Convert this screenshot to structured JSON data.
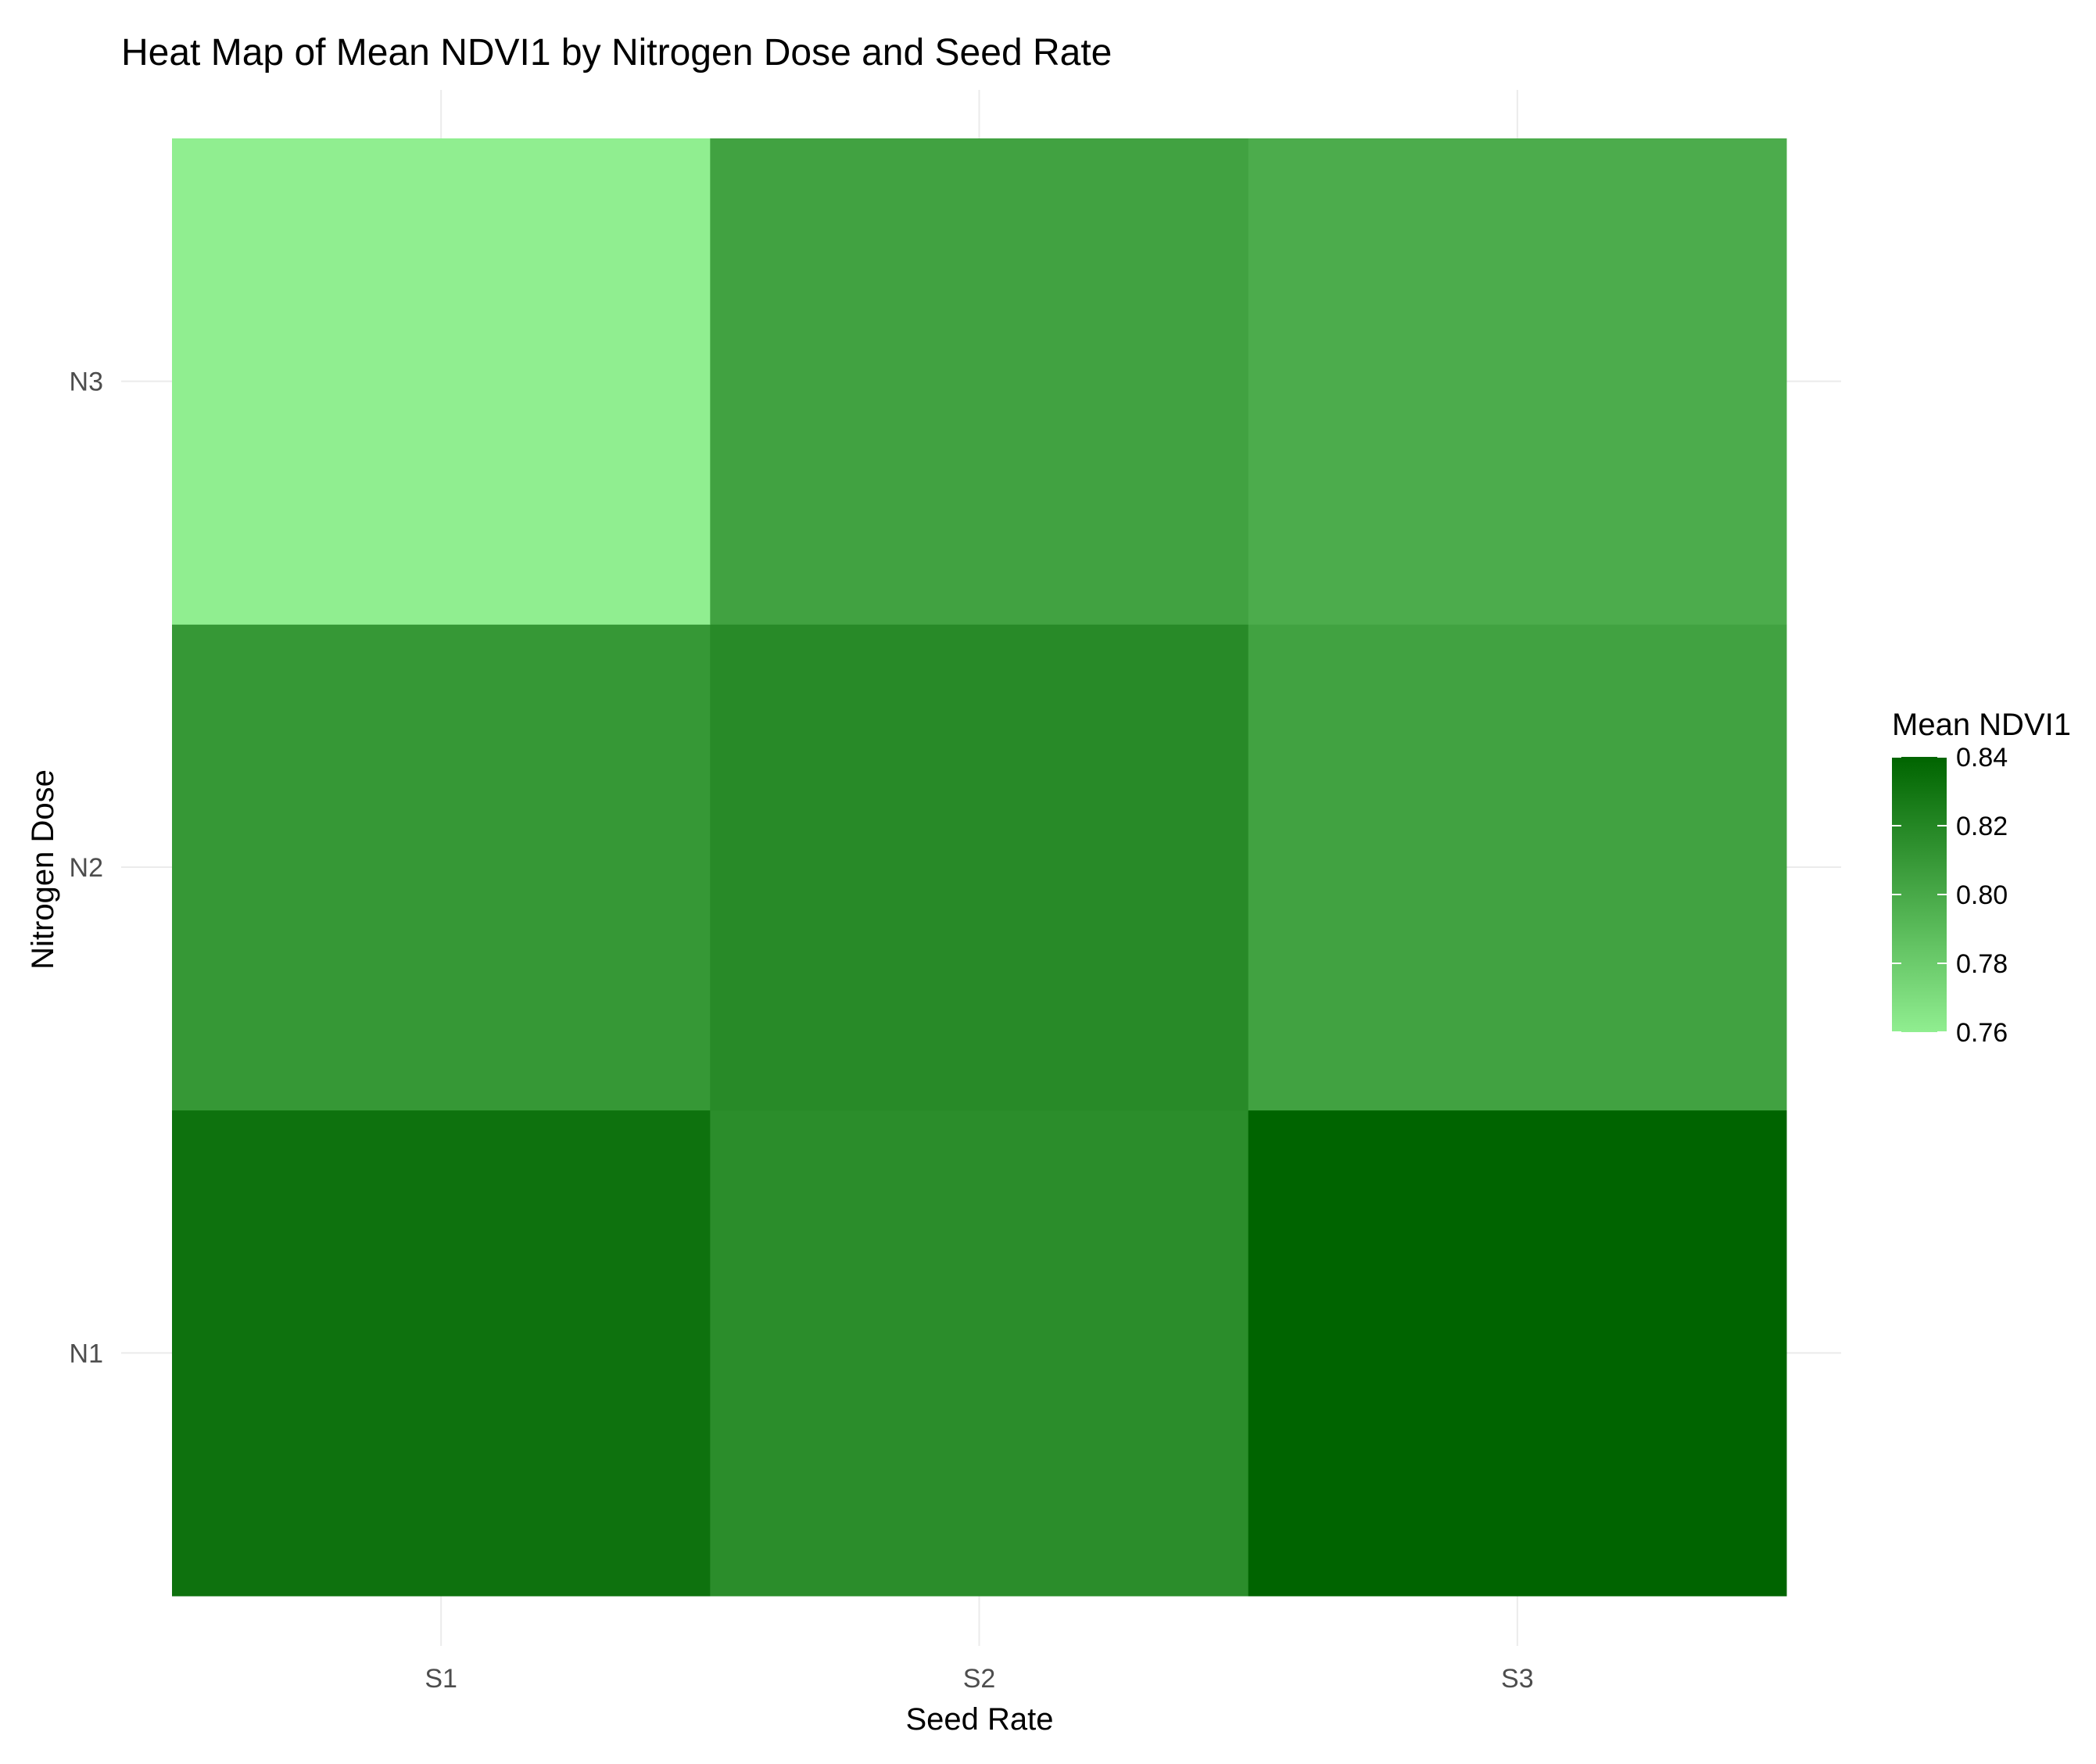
{
  "chart_data": {
    "type": "heatmap",
    "title": "Heat Map of Mean NDVI1 by Nitrogen Dose and Seed Rate",
    "xlabel": "Seed Rate",
    "ylabel": "Nitrogen Dose",
    "x_categories": [
      "S1",
      "S2",
      "S3"
    ],
    "y_categories": [
      "N1",
      "N2",
      "N3"
    ],
    "cells": [
      {
        "x": "S1",
        "y": "N1",
        "value": 0.832
      },
      {
        "x": "S2",
        "y": "N1",
        "value": 0.816
      },
      {
        "x": "S3",
        "y": "N1",
        "value": 0.84
      },
      {
        "x": "S1",
        "y": "N2",
        "value": 0.81
      },
      {
        "x": "S2",
        "y": "N2",
        "value": 0.818
      },
      {
        "x": "S3",
        "y": "N2",
        "value": 0.804
      },
      {
        "x": "S1",
        "y": "N3",
        "value": 0.76
      },
      {
        "x": "S2",
        "y": "N3",
        "value": 0.804
      },
      {
        "x": "S3",
        "y": "N3",
        "value": 0.798
      }
    ],
    "legend": {
      "title": "Mean NDVI1",
      "range": [
        0.76,
        0.84
      ],
      "ticks": [
        0.76,
        0.78,
        0.8,
        0.82,
        0.84
      ],
      "tick_labels": [
        "0.76",
        "0.78",
        "0.80",
        "0.82",
        "0.84"
      ],
      "low_color": "#90ee90",
      "high_color": "#006400",
      "placement": "right"
    },
    "grid": true
  }
}
